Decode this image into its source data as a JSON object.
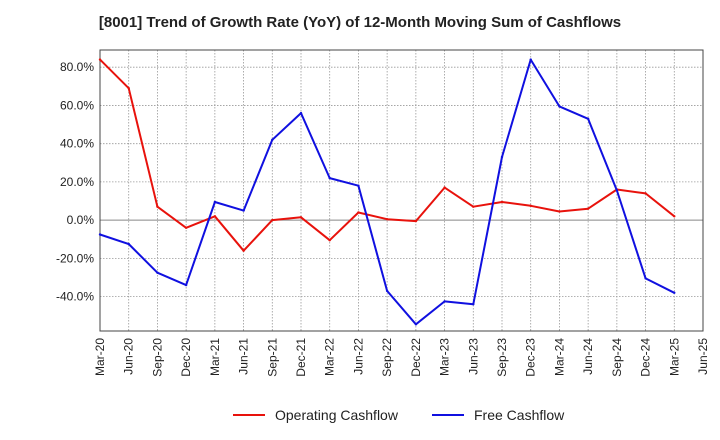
{
  "chart_data": {
    "type": "line",
    "title": "[8001]  Trend of Growth Rate (YoY) of 12-Month Moving Sum of Cashflows",
    "xlabel": "",
    "ylabel": "",
    "x": [
      "Mar-20",
      "Jun-20",
      "Sep-20",
      "Dec-20",
      "Mar-21",
      "Jun-21",
      "Sep-21",
      "Dec-21",
      "Mar-22",
      "Jun-22",
      "Sep-22",
      "Dec-22",
      "Mar-23",
      "Jun-23",
      "Sep-23",
      "Dec-23",
      "Mar-24",
      "Jun-24",
      "Sep-24",
      "Dec-24",
      "Mar-25",
      "Jun-25"
    ],
    "ylim": [
      -58,
      89
    ],
    "yticks": [
      80,
      60,
      40,
      20,
      0,
      -20,
      -40
    ],
    "ytick_labels": [
      "80.0%",
      "60.0%",
      "40.0%",
      "20.0%",
      "0.0%",
      "-20.0%",
      "-40.0%"
    ],
    "grid": true,
    "legend_position": "bottom-center",
    "series": [
      {
        "name": "Operating Cashflow",
        "color": "#e8120c",
        "values": [
          84,
          69,
          7,
          -4,
          2,
          -16,
          0,
          1.5,
          -10.5,
          4,
          0.5,
          -0.5,
          17,
          7,
          9.5,
          7.5,
          4.5,
          6,
          16,
          14,
          2,
          null
        ]
      },
      {
        "name": "Free Cashflow",
        "color": "#1010e0",
        "values": [
          -7.5,
          -12.5,
          -27.5,
          -34,
          9.5,
          5,
          42,
          56,
          22,
          18,
          -37,
          -54.5,
          -42.5,
          -44,
          33,
          84,
          59.5,
          53,
          15.5,
          -30.5,
          -38,
          null
        ]
      }
    ]
  }
}
